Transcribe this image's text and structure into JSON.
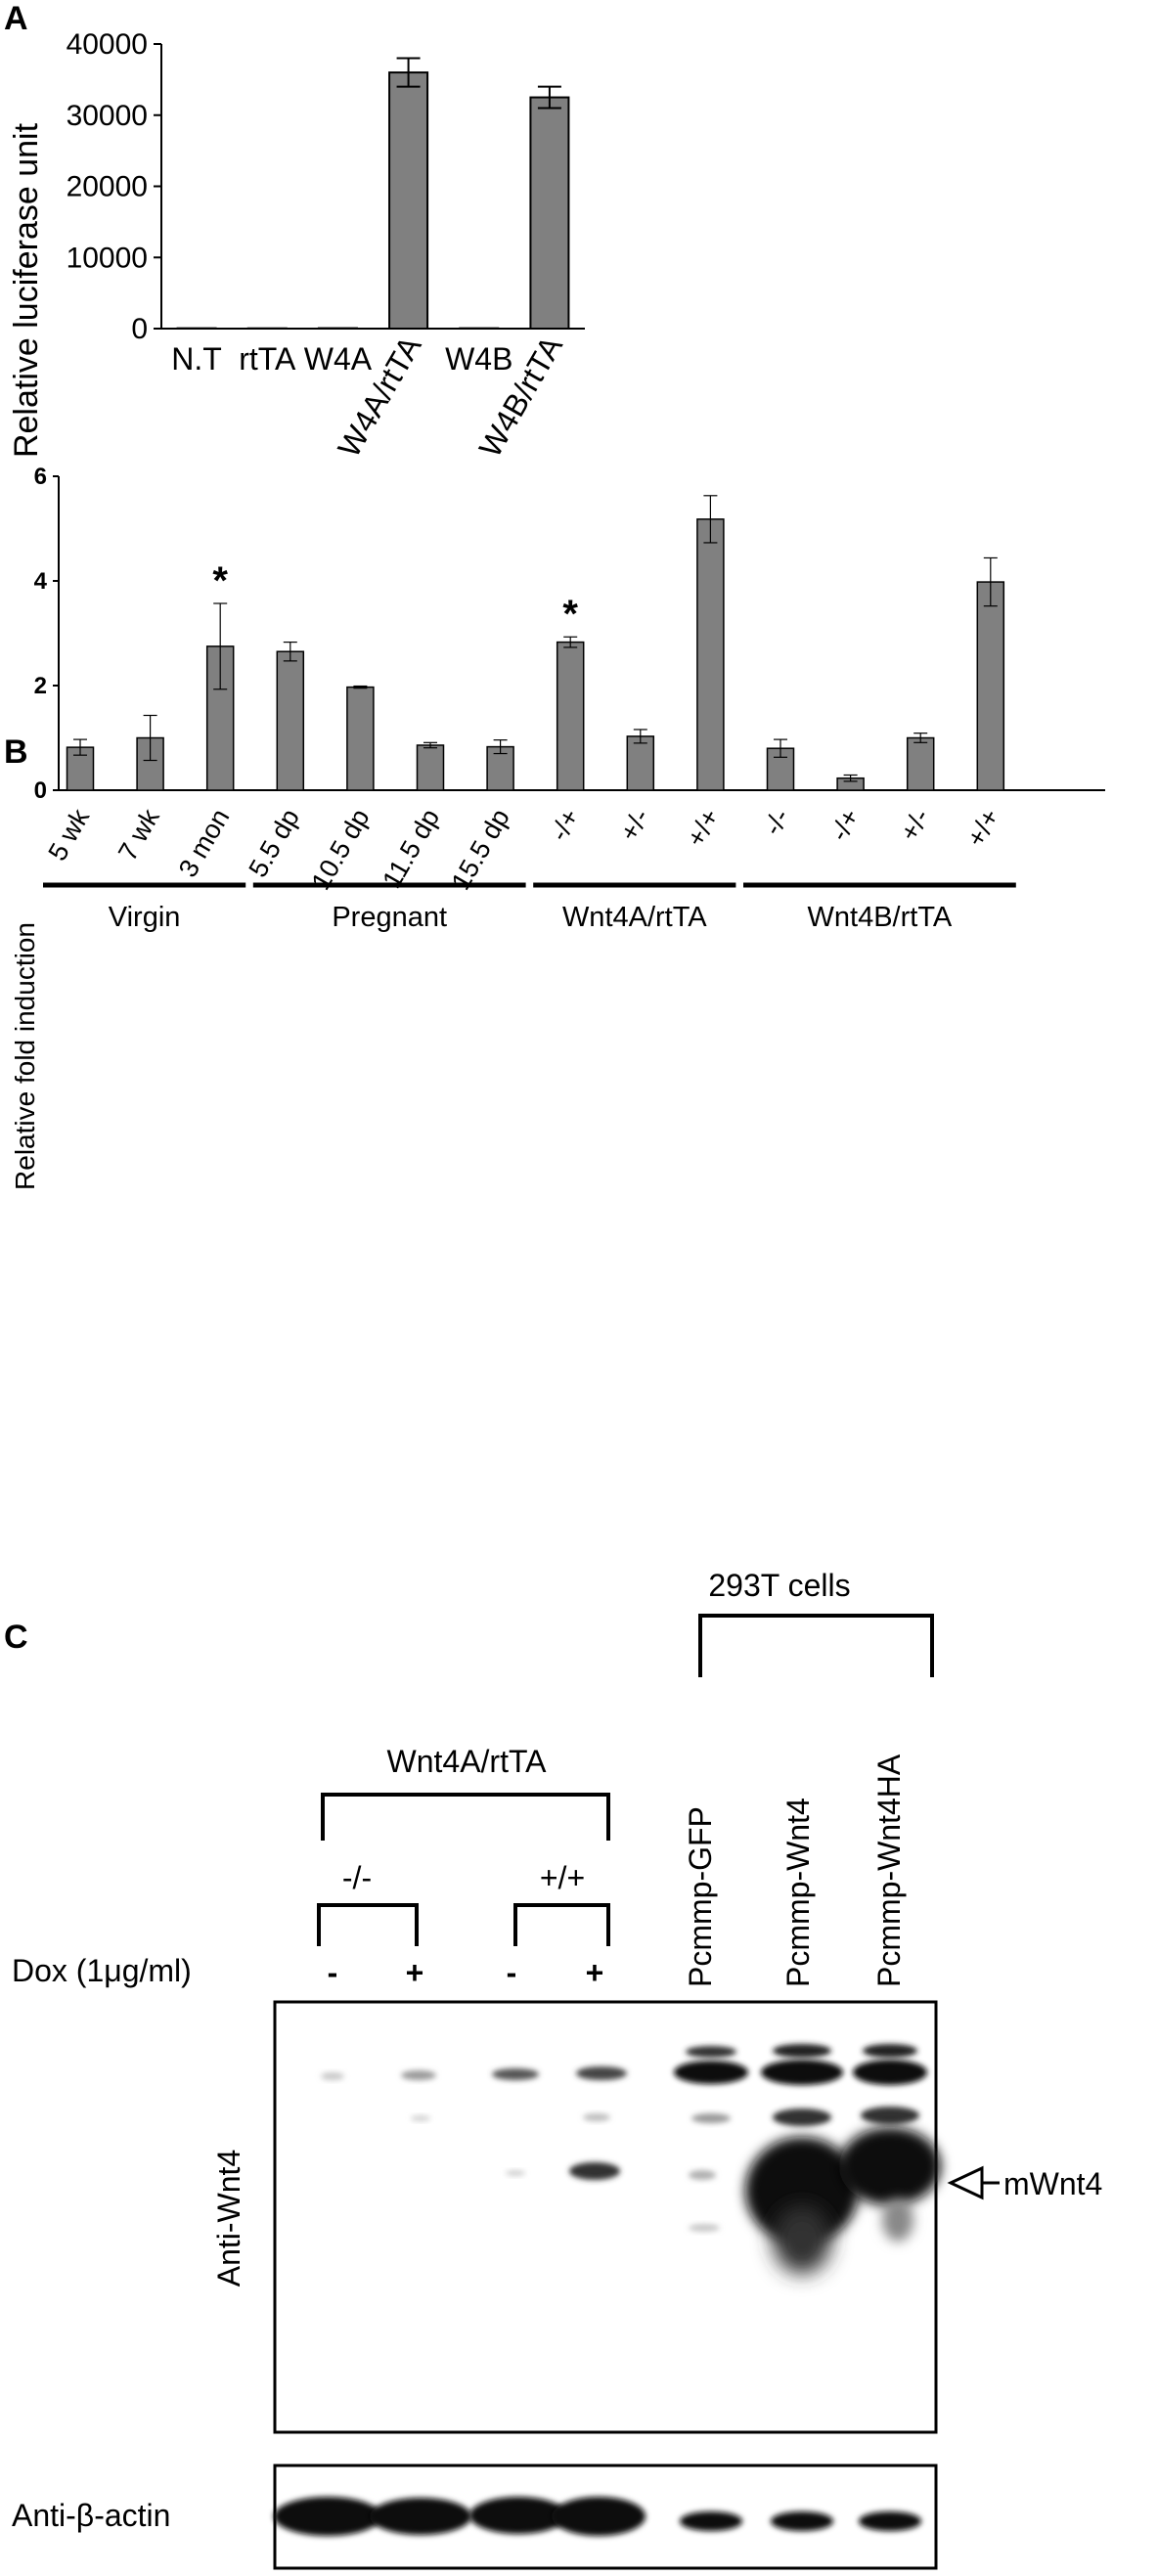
{
  "panels": {
    "a": {
      "label": "A"
    },
    "b": {
      "label": "B",
      "groups": [
        "Virgin",
        "Pregnant",
        "Wnt4A/rtTA",
        "Wnt4B/rtTA"
      ],
      "sig_marker": "*"
    },
    "c": {
      "label": "C",
      "cells_label": "293T cells",
      "wnt4a_label": "Wnt4A/rtTA",
      "genotype_neg": "-/-",
      "genotype_pos": "+/+",
      "dox_label": "Dox (1μg/ml)",
      "dox_marks": [
        "-",
        "+",
        "-",
        "+"
      ],
      "plasmids": [
        "Pcmmp-GFP",
        "Pcmmp-Wnt4",
        "Pcmmp-Wnt4HA"
      ],
      "blot_top_label": "Anti-Wnt4",
      "blot_bottom_label": "Anti-β-actin",
      "band_label": "mWnt4"
    }
  },
  "chart_data": [
    {
      "type": "bar",
      "panel": "A",
      "title": "",
      "xlabel": "",
      "ylabel": "Relative luciferase unit",
      "categories": [
        "N.T",
        "rtTA",
        "W4A",
        "W4A/rtTA",
        "W4B",
        "W4B/rtTA"
      ],
      "values": [
        50,
        40,
        60,
        36000,
        50,
        32500
      ],
      "errors": [
        0,
        0,
        0,
        2000,
        0,
        1500
      ],
      "ylim": [
        0,
        40000
      ],
      "yticks": [
        0,
        10000,
        20000,
        30000,
        40000
      ],
      "ytick_labels": [
        "0",
        "10000",
        "20000",
        "30000",
        "40000"
      ],
      "bar_color": "#808080",
      "grid": false
    },
    {
      "type": "bar",
      "panel": "B",
      "title": "",
      "xlabel": "",
      "ylabel": "Relative fold induction",
      "categories": [
        "5 wk",
        "7 wk",
        "3 mon",
        "5.5 dp",
        "10.5 dp",
        "11.5 dp",
        "15.5 dp",
        "-/+",
        "+/-",
        "+/+",
        "-/-",
        "-/+",
        "+/-",
        "+/+"
      ],
      "values": [
        0.82,
        1.0,
        2.75,
        2.65,
        1.97,
        0.86,
        0.83,
        2.83,
        1.03,
        5.18,
        0.8,
        0.23,
        1.0,
        3.98
      ],
      "errors": [
        0.15,
        0.43,
        0.82,
        0.18,
        0.02,
        0.05,
        0.13,
        0.1,
        0.13,
        0.45,
        0.17,
        0.06,
        0.09,
        0.46
      ],
      "significant": [
        false,
        false,
        true,
        false,
        false,
        false,
        false,
        true,
        false,
        false,
        false,
        false,
        false,
        false
      ],
      "groups": [
        {
          "name": "Virgin",
          "start": 0,
          "end": 2
        },
        {
          "name": "Pregnant",
          "start": 3,
          "end": 6
        },
        {
          "name": "Wnt4A/rtTA",
          "start": 7,
          "end": 9
        },
        {
          "name": "Wnt4B/rtTA",
          "start": 10,
          "end": 13
        }
      ],
      "ylim": [
        0,
        6
      ],
      "yticks": [
        0,
        2,
        4,
        6
      ],
      "ytick_labels": [
        "0",
        "2",
        "4",
        "6"
      ],
      "bar_color": "#808080",
      "grid": false
    }
  ]
}
